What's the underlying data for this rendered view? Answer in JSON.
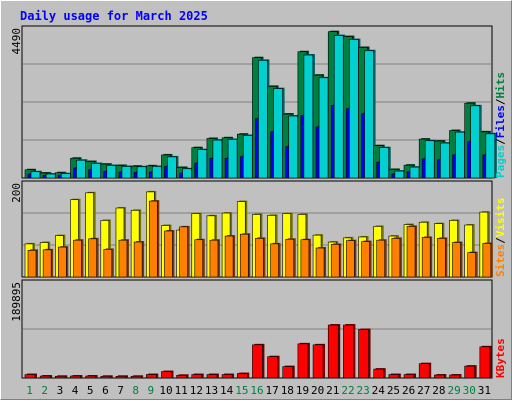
{
  "title": "Daily usage for March 2025",
  "colors": {
    "background": "#c0c0c0",
    "plot_background": "#c0c0c0",
    "pages": "#00d0d0",
    "files": "#0000ff",
    "hits": "#008040",
    "visits": "#ffff00",
    "sites": "#ff8000",
    "kbytes": "#ff0000",
    "weekend_tick": "#008040",
    "weekday_tick": "#000000",
    "title": "#0000ff"
  },
  "legends": {
    "top": [
      {
        "text": "Pages",
        "color": "#00d0d0"
      },
      {
        "text": "/",
        "color": "#000000"
      },
      {
        "text": "Files",
        "color": "#0000ff"
      },
      {
        "text": "/",
        "color": "#000000"
      },
      {
        "text": "Hits",
        "color": "#008040"
      }
    ],
    "middle": [
      {
        "text": "Sites",
        "color": "#ff8000"
      },
      {
        "text": "/",
        "color": "#000000"
      },
      {
        "text": "Visits",
        "color": "#ffff00"
      }
    ],
    "bottom": [
      {
        "text": "KBytes",
        "color": "#ff0000"
      }
    ]
  },
  "chart_data": [
    {
      "type": "bar",
      "panel": "hits-files-pages",
      "ymax_label": "4490",
      "ylim": [
        0,
        4490
      ],
      "categories": [
        "1",
        "2",
        "3",
        "4",
        "5",
        "6",
        "7",
        "8",
        "9",
        "10",
        "11",
        "12",
        "13",
        "14",
        "15",
        "16",
        "17",
        "18",
        "19",
        "20",
        "21",
        "22",
        "23",
        "24",
        "25",
        "26",
        "27",
        "28",
        "29",
        "30",
        "31"
      ],
      "weekend_days": [
        "1",
        "2",
        "8",
        "9",
        "15",
        "16",
        "22",
        "23",
        "29",
        "30"
      ],
      "series": [
        {
          "name": "Hits",
          "color": "#008040",
          "values": [
            250,
            150,
            160,
            600,
            500,
            420,
            380,
            360,
            370,
            700,
            320,
            920,
            1200,
            1220,
            1330,
            3650,
            2780,
            1940,
            3830,
            3120,
            4440,
            4290,
            3960,
            980,
            260,
            390,
            1180,
            1120,
            1440,
            2270,
            1400
          ]
        },
        {
          "name": "Files",
          "color": "#0000ff",
          "values": [
            120,
            80,
            80,
            300,
            250,
            200,
            180,
            170,
            180,
            350,
            150,
            450,
            600,
            600,
            650,
            1800,
            1400,
            950,
            1900,
            1550,
            2200,
            2100,
            1950,
            480,
            120,
            190,
            580,
            550,
            700,
            1100,
            700
          ]
        },
        {
          "name": "Pages",
          "color": "#00d0d0",
          "values": [
            190,
            120,
            130,
            540,
            440,
            380,
            350,
            340,
            350,
            640,
            280,
            860,
            1150,
            1170,
            1290,
            3570,
            2710,
            1880,
            3730,
            3040,
            4320,
            4200,
            3860,
            920,
            210,
            330,
            1130,
            1060,
            1390,
            2190,
            1340
          ]
        }
      ]
    },
    {
      "type": "bar",
      "panel": "visits-sites",
      "ymax_label": "200",
      "ylim": [
        0,
        200
      ],
      "categories": [
        "1",
        "2",
        "3",
        "4",
        "5",
        "6",
        "7",
        "8",
        "9",
        "10",
        "11",
        "12",
        "13",
        "14",
        "15",
        "16",
        "17",
        "18",
        "19",
        "20",
        "21",
        "22",
        "23",
        "24",
        "25",
        "26",
        "27",
        "28",
        "29",
        "30",
        "31"
      ],
      "weekend_days": [
        "1",
        "2",
        "8",
        "9",
        "15",
        "16",
        "22",
        "23",
        "29",
        "30"
      ],
      "series": [
        {
          "name": "Visits",
          "color": "#ffff00",
          "values": [
            72,
            75,
            90,
            168,
            183,
            123,
            150,
            145,
            185,
            112,
            102,
            138,
            133,
            139,
            164,
            136,
            134,
            138,
            136,
            91,
            76,
            85,
            87,
            110,
            89,
            114,
            119,
            116,
            123,
            113,
            141
          ]
        },
        {
          "name": "Sites",
          "color": "#ff8000",
          "values": [
            58,
            59,
            65,
            80,
            83,
            60,
            80,
            76,
            165,
            100,
            109,
            81,
            80,
            89,
            93,
            84,
            72,
            82,
            81,
            63,
            71,
            79,
            77,
            80,
            84,
            110,
            86,
            84,
            75,
            53,
            73
          ]
        }
      ]
    },
    {
      "type": "bar",
      "panel": "kbytes",
      "ymax_label": "189895",
      "ylim": [
        0,
        189895
      ],
      "categories": [
        "1",
        "2",
        "3",
        "4",
        "5",
        "6",
        "7",
        "8",
        "9",
        "10",
        "11",
        "12",
        "13",
        "14",
        "15",
        "16",
        "17",
        "18",
        "19",
        "20",
        "21",
        "22",
        "23",
        "24",
        "25",
        "26",
        "27",
        "28",
        "29",
        "30",
        "31"
      ],
      "weekend_days": [
        "1",
        "2",
        "8",
        "9",
        "15",
        "16",
        "22",
        "23",
        "29",
        "30"
      ],
      "series": [
        {
          "name": "KBytes",
          "color": "#ff0000",
          "values": [
            7000,
            4000,
            3500,
            4000,
            4000,
            3500,
            3500,
            3500,
            7000,
            13000,
            5500,
            7000,
            7000,
            7000,
            9000,
            67000,
            43000,
            23000,
            69000,
            67000,
            107000,
            107000,
            98000,
            18000,
            7000,
            7000,
            29000,
            6000,
            6000,
            24000,
            63000
          ]
        }
      ]
    }
  ]
}
